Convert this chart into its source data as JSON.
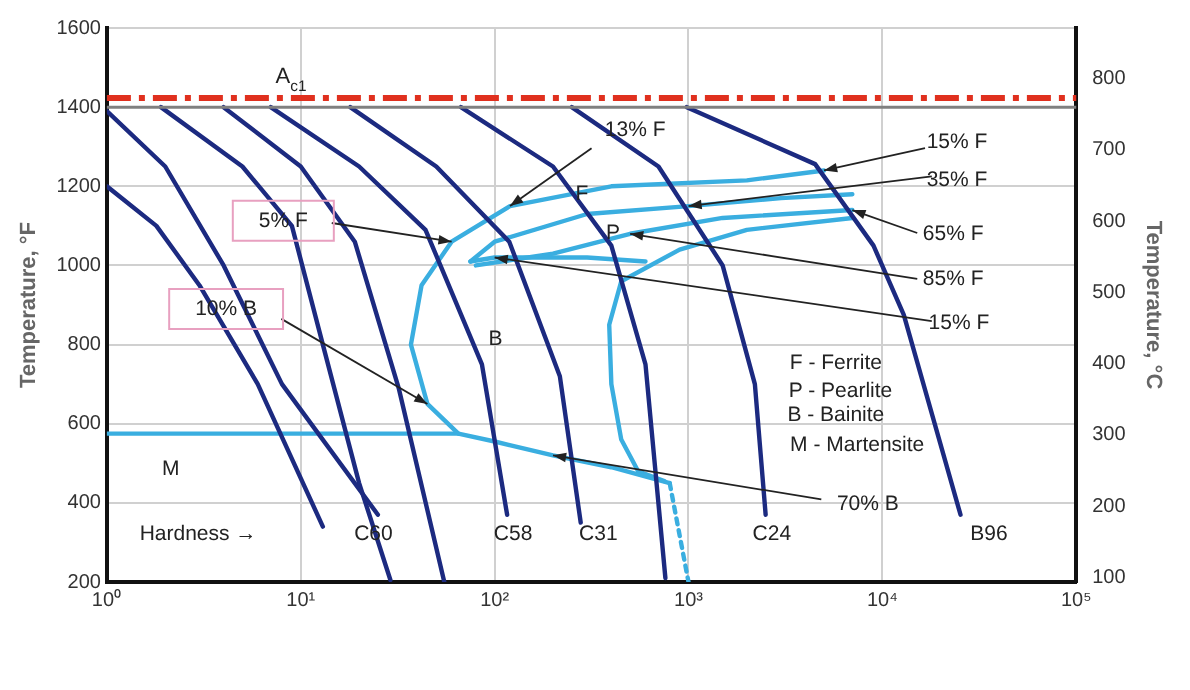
{
  "chart_data": {
    "type": "line",
    "ylabel": "Temperature, °F",
    "y2label": "Temperature, °C",
    "log": "x",
    "grid": true,
    "legend": false,
    "marker": "none",
    "xlim": [
      1,
      100000
    ],
    "xticks": [
      {
        "value": 1,
        "label": "10⁰"
      },
      {
        "value": 10,
        "label": "10¹"
      },
      {
        "value": 100,
        "label": "10²"
      },
      {
        "value": 1000,
        "label": "10³"
      },
      {
        "value": 10000,
        "label": "10⁴"
      },
      {
        "value": 100000,
        "label": "10⁵"
      }
    ],
    "ylim": [
      200,
      1600
    ],
    "yticks": [
      200,
      400,
      600,
      800,
      1000,
      1200,
      1400,
      1600
    ],
    "y2lim": [
      93.3,
      871.1
    ],
    "y2ticks": [
      100,
      200,
      300,
      400,
      500,
      600,
      700,
      800
    ],
    "series": [
      {
        "color": "#1c2a80",
        "x": [
          1,
          1.8,
          3,
          6,
          13
        ],
        "values": [
          1200,
          1100,
          950,
          700,
          340
        ]
      },
      {
        "color": "#1c2a80",
        "x": [
          1,
          2,
          4,
          8,
          25
        ],
        "values": [
          1390,
          1250,
          1000,
          700,
          370
        ]
      },
      {
        "color": "#1c2a80",
        "x": [
          1.9,
          5,
          9,
          13,
          20,
          29
        ],
        "values": [
          1400,
          1250,
          1100,
          800,
          450,
          205
        ]
      },
      {
        "color": "#1c2a80",
        "x": [
          4,
          10,
          19,
          32,
          55
        ],
        "values": [
          1400,
          1250,
          1060,
          690,
          200
        ]
      },
      {
        "color": "#1c2a80",
        "x": [
          7,
          20,
          44,
          86,
          116
        ],
        "values": [
          1400,
          1250,
          1090,
          750,
          370
        ]
      },
      {
        "color": "#1c2a80",
        "x": [
          18,
          50,
          119,
          217,
          278
        ],
        "values": [
          1400,
          1250,
          1060,
          720,
          350
        ]
      },
      {
        "color": "#1c2a80",
        "x": [
          67,
          200,
          400,
          600,
          760
        ],
        "values": [
          1400,
          1250,
          1050,
          750,
          210
        ]
      },
      {
        "color": "#1c2a80",
        "x": [
          250,
          700,
          1500,
          2200,
          2500
        ],
        "values": [
          1400,
          1250,
          1000,
          700,
          370
        ]
      },
      {
        "color": "#1c2a80",
        "x": [
          980,
          4500,
          9000,
          12900,
          25300
        ],
        "values": [
          1400,
          1256,
          1050,
          875,
          370
        ]
      },
      {
        "color": "#3aaee0",
        "x": [
          1,
          65,
          100,
          200,
          400,
          800
        ],
        "values": [
          575,
          575,
          555,
          520,
          490,
          450
        ]
      },
      {
        "color": "#3aaee0",
        "x": [
          65,
          45,
          37,
          42,
          60,
          120,
          400,
          2000,
          5000
        ],
        "values": [
          575,
          650,
          800,
          950,
          1060,
          1150,
          1200,
          1215,
          1240
        ]
      },
      {
        "color": "#3aaee0",
        "x": [
          75,
          100,
          300,
          1000,
          3000,
          7000
        ],
        "values": [
          1010,
          1060,
          1130,
          1150,
          1170,
          1180
        ]
      },
      {
        "color": "#3aaee0",
        "x": [
          80,
          200,
          500,
          1500,
          7000
        ],
        "values": [
          1000,
          1030,
          1080,
          1120,
          1140
        ]
      },
      {
        "color": "#3aaee0",
        "x": [
          75,
          100,
          300,
          600
        ],
        "values": [
          1010,
          1020,
          1020,
          1010
        ]
      },
      {
        "color": "#3aaee0",
        "x": [
          7000,
          2000,
          900,
          450,
          390,
          400,
          450,
          550,
          750
        ],
        "values": [
          1120,
          1090,
          1040,
          960,
          850,
          700,
          560,
          480,
          455
        ]
      },
      {
        "color": "#3aaee0",
        "line_style": "dotted",
        "x": [
          800,
          1000
        ],
        "values": [
          450,
          200
        ]
      }
    ],
    "ref_lines": [
      {
        "axis": "y",
        "value": 1423,
        "label": "A$_{c1}$",
        "color": "#e0301e",
        "line_style": "dashed"
      },
      {
        "axis": "y",
        "value": 1400,
        "color": "#808080"
      }
    ],
    "annotations": [
      {
        "text": "13% F",
        "x": 120,
        "y": 1150
      },
      {
        "text": "15% F",
        "x": 5000,
        "y": 1240
      },
      {
        "text": "35% F",
        "x": 1000,
        "y": 1150
      },
      {
        "text": "65% F",
        "x": 7000,
        "y": 1140
      },
      {
        "text": "85% F",
        "x": 500,
        "y": 1080
      },
      {
        "text": "15% F",
        "x": 100,
        "y": 1020
      },
      {
        "text": "5% F",
        "x": 60,
        "y": 1060
      },
      {
        "text": "10% B",
        "x": 45,
        "y": 650
      },
      {
        "text": "70% B",
        "x": 200,
        "y": 520
      },
      "F",
      "P",
      "B",
      "M",
      "F - Ferrite",
      "P - Pearlite",
      "B - Bainite",
      "M - Martensite",
      "Hardness →",
      "C60",
      "C58",
      "C31",
      "C24",
      "B96"
    ]
  }
}
